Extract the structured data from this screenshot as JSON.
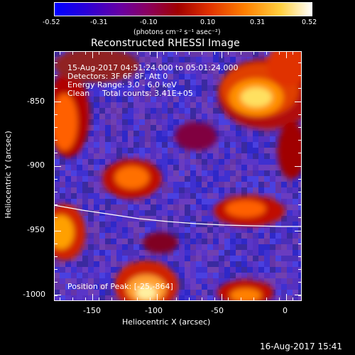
{
  "colorbar": {
    "tick_labels": [
      "-0.52",
      "-0.31",
      "-0.10",
      "0.10",
      "0.31",
      "0.52"
    ],
    "unit_label": "(photons cm⁻² s⁻¹ asec⁻²)"
  },
  "title": "Reconstructed RHESSI Image",
  "annotations": {
    "time_range": "15-Aug-2017 04:51:24.000 to 05:01:24.000",
    "detectors": "Detectors: 3F 6F 8F, Att 0",
    "energy": "Energy Range: 3.0 - 6.0 keV",
    "method": "Clean",
    "counts": "Total counts: 3.41E+05",
    "peak": "Position of Peak: [-25,-864]"
  },
  "axes": {
    "xlabel": "Heliocentric X (arcsec)",
    "ylabel": "Heliocentric Y (arcsec)",
    "x_ticks": [
      "-150",
      "-100",
      "-50",
      "0"
    ],
    "y_ticks": [
      "-850",
      "-900",
      "-950",
      "-1000"
    ]
  },
  "footer_timestamp": "16-Aug-2017 15:41",
  "image_range": {
    "xlim": [
      -180,
      12
    ],
    "ylim": [
      -1004,
      -810
    ]
  }
}
